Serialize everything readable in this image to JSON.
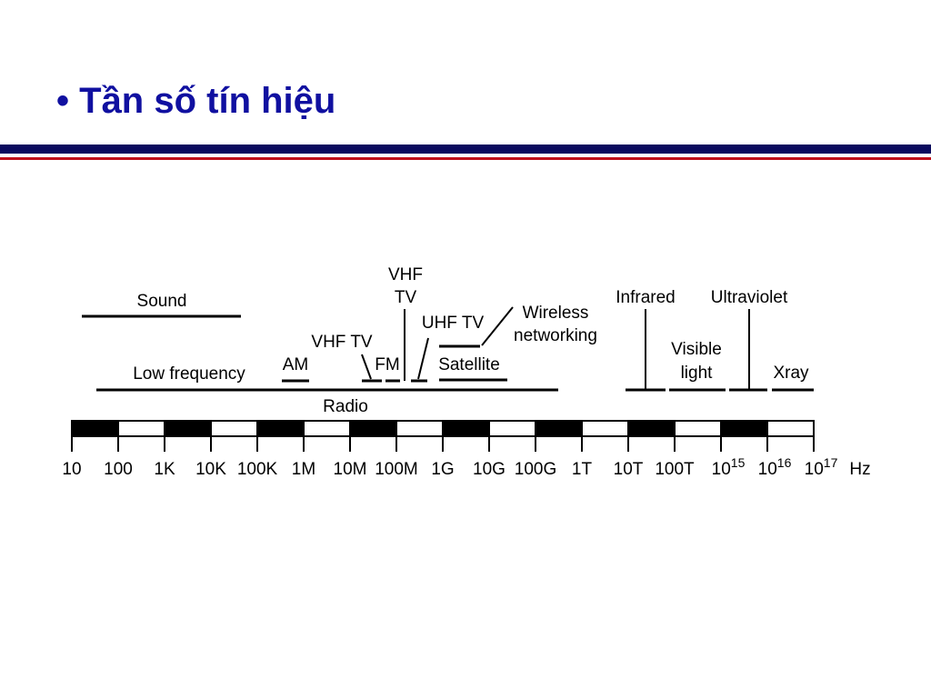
{
  "header": {
    "title": "• Tần số tín hiệu"
  },
  "diagram": {
    "sound": "Sound",
    "low_frequency": "Low frequency",
    "radio": "Radio",
    "am": "AM",
    "vhf_tv_low": "VHF TV",
    "fm": "FM",
    "vhf_tv_high": [
      "VHF",
      "TV"
    ],
    "uhf_tv": "UHF TV",
    "wireless": [
      "Wireless",
      "networking"
    ],
    "satellite": "Satellite",
    "infrared": "Infrared",
    "ultraviolet": "Ultraviolet",
    "visible": [
      "Visible",
      "light"
    ],
    "xray": "Xray"
  },
  "axis": {
    "ticks": [
      "10",
      "100",
      "1K",
      "10K",
      "100K",
      "1M",
      "10M",
      "100M",
      "1G",
      "10G",
      "100G",
      "1T",
      "10T",
      "100T",
      {
        "base": "10",
        "exp": "15"
      },
      {
        "base": "10",
        "exp": "16"
      },
      {
        "base": "10",
        "exp": "17"
      }
    ],
    "unit": "Hz"
  }
}
